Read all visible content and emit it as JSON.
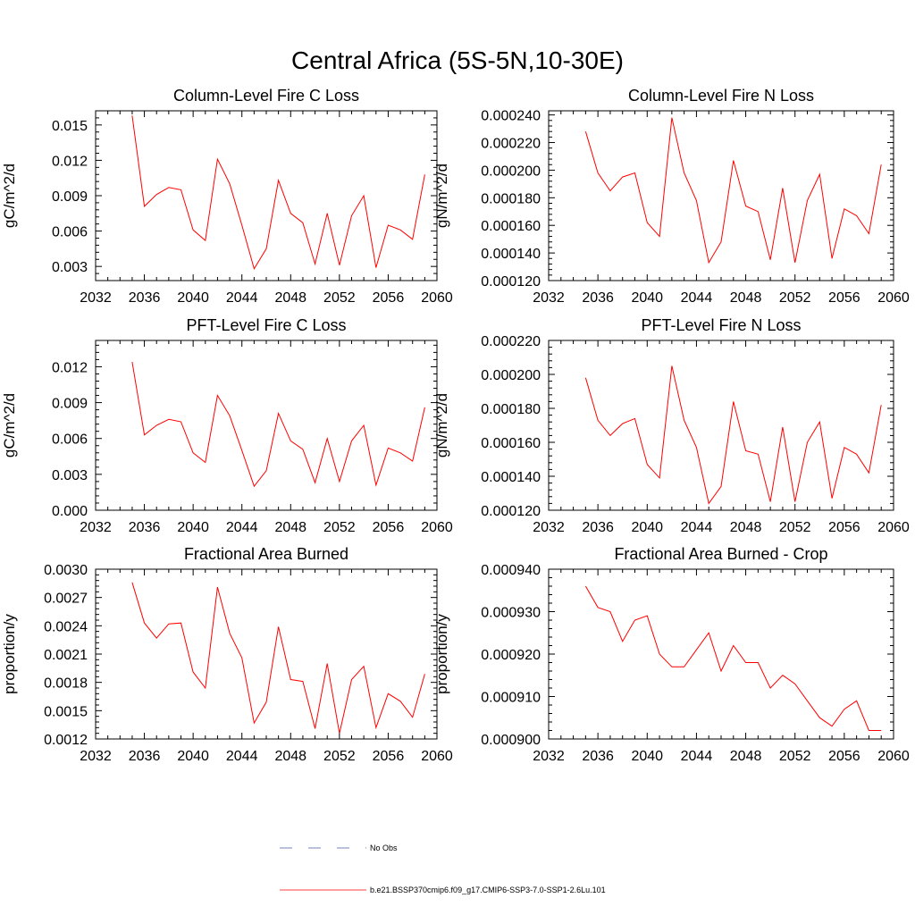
{
  "figure": {
    "title": "Central Africa (5S-5N,10-30E)"
  },
  "legend": {
    "entries": [
      {
        "label": "No Obs",
        "color": "#4a5aa8",
        "style": "dashed"
      },
      {
        "label": "b.e21.BSSP370cmip6.f09_g17.CMIP6-SSP3-7.0-SSP1-2.6Lu.101",
        "color": "#ff0000",
        "style": "solid"
      }
    ]
  },
  "chart_data": [
    {
      "type": "line",
      "title": "Column-Level Fire C Loss",
      "ylabel": "gC/m^2/d",
      "xlim": [
        2032,
        2060
      ],
      "ylim": [
        0.0018,
        0.0162
      ],
      "xticks": [
        "2032",
        "2036",
        "2040",
        "2044",
        "2048",
        "2052",
        "2056",
        "2060"
      ],
      "yticks": [
        "0.003",
        "0.006",
        "0.009",
        "0.012",
        "0.015"
      ],
      "series": [
        {
          "color": "#ff0000",
          "x": [
            2035,
            2036,
            2037,
            2038,
            2039,
            2040,
            2041,
            2042,
            2043,
            2044,
            2045,
            2046,
            2047,
            2048,
            2049,
            2050,
            2051,
            2052,
            2053,
            2054,
            2055,
            2056,
            2057,
            2058,
            2059
          ],
          "values": [
            0.0158,
            0.0081,
            0.0091,
            0.0097,
            0.0095,
            0.0061,
            0.0052,
            0.0121,
            0.01,
            0.0065,
            0.0028,
            0.0045,
            0.0103,
            0.0075,
            0.0067,
            0.0032,
            0.0075,
            0.0031,
            0.0073,
            0.009,
            0.0029,
            0.0065,
            0.0061,
            0.0053,
            0.0108
          ]
        }
      ]
    },
    {
      "type": "line",
      "title": "Column-Level Fire N Loss",
      "ylabel": "gN/m^2/d",
      "xlim": [
        2032,
        2060
      ],
      "ylim": [
        0.00012,
        0.000243
      ],
      "xticks": [
        "2032",
        "2036",
        "2040",
        "2044",
        "2048",
        "2052",
        "2056",
        "2060"
      ],
      "yticks": [
        "0.000120",
        "0.000140",
        "0.000160",
        "0.000180",
        "0.000200",
        "0.000220",
        "0.000240"
      ],
      "series": [
        {
          "color": "#ff0000",
          "x": [
            2035,
            2036,
            2037,
            2038,
            2039,
            2040,
            2041,
            2042,
            2043,
            2044,
            2045,
            2046,
            2047,
            2048,
            2049,
            2050,
            2051,
            2052,
            2053,
            2054,
            2055,
            2056,
            2057,
            2058,
            2059
          ],
          "values": [
            0.000228,
            0.000198,
            0.000185,
            0.000195,
            0.000198,
            0.000162,
            0.000152,
            0.000238,
            0.000198,
            0.000178,
            0.000133,
            0.000148,
            0.000207,
            0.000174,
            0.00017,
            0.000135,
            0.000187,
            0.000133,
            0.000178,
            0.000197,
            0.000136,
            0.000172,
            0.000167,
            0.000154,
            0.000204
          ]
        }
      ]
    },
    {
      "type": "line",
      "title": "PFT-Level Fire C Loss",
      "ylabel": "gC/m^2/d",
      "xlim": [
        2032,
        2060
      ],
      "ylim": [
        0.0,
        0.0142
      ],
      "xticks": [
        "2032",
        "2036",
        "2040",
        "2044",
        "2048",
        "2052",
        "2056",
        "2060"
      ],
      "yticks": [
        "0.000",
        "0.003",
        "0.006",
        "0.009",
        "0.012"
      ],
      "series": [
        {
          "color": "#ff0000",
          "x": [
            2035,
            2036,
            2037,
            2038,
            2039,
            2040,
            2041,
            2042,
            2043,
            2044,
            2045,
            2046,
            2047,
            2048,
            2049,
            2050,
            2051,
            2052,
            2053,
            2054,
            2055,
            2056,
            2057,
            2058,
            2059
          ],
          "values": [
            0.0124,
            0.0063,
            0.0071,
            0.0076,
            0.0074,
            0.0048,
            0.004,
            0.0096,
            0.0079,
            0.005,
            0.002,
            0.0033,
            0.0081,
            0.0058,
            0.0051,
            0.0023,
            0.006,
            0.0024,
            0.0058,
            0.0071,
            0.0021,
            0.0052,
            0.0048,
            0.0041,
            0.0086
          ]
        }
      ]
    },
    {
      "type": "line",
      "title": "PFT-Level Fire N Loss",
      "ylabel": "gN/m^2/d",
      "xlim": [
        2032,
        2060
      ],
      "ylim": [
        0.00012,
        0.00022
      ],
      "xticks": [
        "2032",
        "2036",
        "2040",
        "2044",
        "2048",
        "2052",
        "2056",
        "2060"
      ],
      "yticks": [
        "0.000120",
        "0.000140",
        "0.000160",
        "0.000180",
        "0.000200",
        "0.000220"
      ],
      "series": [
        {
          "color": "#ff0000",
          "x": [
            2035,
            2036,
            2037,
            2038,
            2039,
            2040,
            2041,
            2042,
            2043,
            2044,
            2045,
            2046,
            2047,
            2048,
            2049,
            2050,
            2051,
            2052,
            2053,
            2054,
            2055,
            2056,
            2057,
            2058,
            2059
          ],
          "values": [
            0.000198,
            0.000173,
            0.000164,
            0.000171,
            0.000174,
            0.000147,
            0.000139,
            0.000205,
            0.000173,
            0.000157,
            0.000124,
            0.000134,
            0.000184,
            0.000155,
            0.000153,
            0.000125,
            0.000169,
            0.000125,
            0.00016,
            0.000172,
            0.000127,
            0.000157,
            0.000153,
            0.000142,
            0.000182
          ]
        }
      ]
    },
    {
      "type": "line",
      "title": "Fractional Area Burned",
      "ylabel": "proportion/y",
      "xlim": [
        2032,
        2060
      ],
      "ylim": [
        0.0012,
        0.003
      ],
      "xticks": [
        "2032",
        "2036",
        "2040",
        "2044",
        "2048",
        "2052",
        "2056",
        "2060"
      ],
      "yticks": [
        "0.0012",
        "0.0015",
        "0.0018",
        "0.0021",
        "0.0024",
        "0.0027",
        "0.0030"
      ],
      "series": [
        {
          "color": "#ff0000",
          "x": [
            2035,
            2036,
            2037,
            2038,
            2039,
            2040,
            2041,
            2042,
            2043,
            2044,
            2045,
            2046,
            2047,
            2048,
            2049,
            2050,
            2051,
            2052,
            2053,
            2054,
            2055,
            2056,
            2057,
            2058,
            2059
          ],
          "values": [
            0.00286,
            0.00243,
            0.00227,
            0.00242,
            0.00243,
            0.00191,
            0.00174,
            0.00281,
            0.00232,
            0.00206,
            0.00137,
            0.00159,
            0.00239,
            0.00183,
            0.00181,
            0.00131,
            0.002,
            0.00126,
            0.00183,
            0.00197,
            0.00132,
            0.00168,
            0.0016,
            0.00143,
            0.00189
          ]
        }
      ]
    },
    {
      "type": "line",
      "title": "Fractional Area Burned - Crop",
      "ylabel": "proportion/y",
      "xlim": [
        2032,
        2060
      ],
      "ylim": [
        0.0009,
        0.00094
      ],
      "xticks": [
        "2032",
        "2036",
        "2040",
        "2044",
        "2048",
        "2052",
        "2056",
        "2060"
      ],
      "yticks": [
        "0.000900",
        "0.000910",
        "0.000920",
        "0.000930",
        "0.000940"
      ],
      "series": [
        {
          "color": "#ff0000",
          "x": [
            2035,
            2036,
            2037,
            2038,
            2039,
            2040,
            2041,
            2042,
            2043,
            2044,
            2045,
            2046,
            2047,
            2048,
            2049,
            2050,
            2051,
            2052,
            2053,
            2054,
            2055,
            2056,
            2057,
            2058,
            2059
          ],
          "values": [
            0.000936,
            0.000931,
            0.00093,
            0.000923,
            0.000928,
            0.000929,
            0.00092,
            0.000917,
            0.000917,
            0.000921,
            0.000925,
            0.000916,
            0.000922,
            0.000918,
            0.000918,
            0.000912,
            0.000915,
            0.000913,
            0.000909,
            0.000905,
            0.000903,
            0.000907,
            0.000909,
            0.000902,
            0.000902
          ]
        }
      ]
    }
  ]
}
